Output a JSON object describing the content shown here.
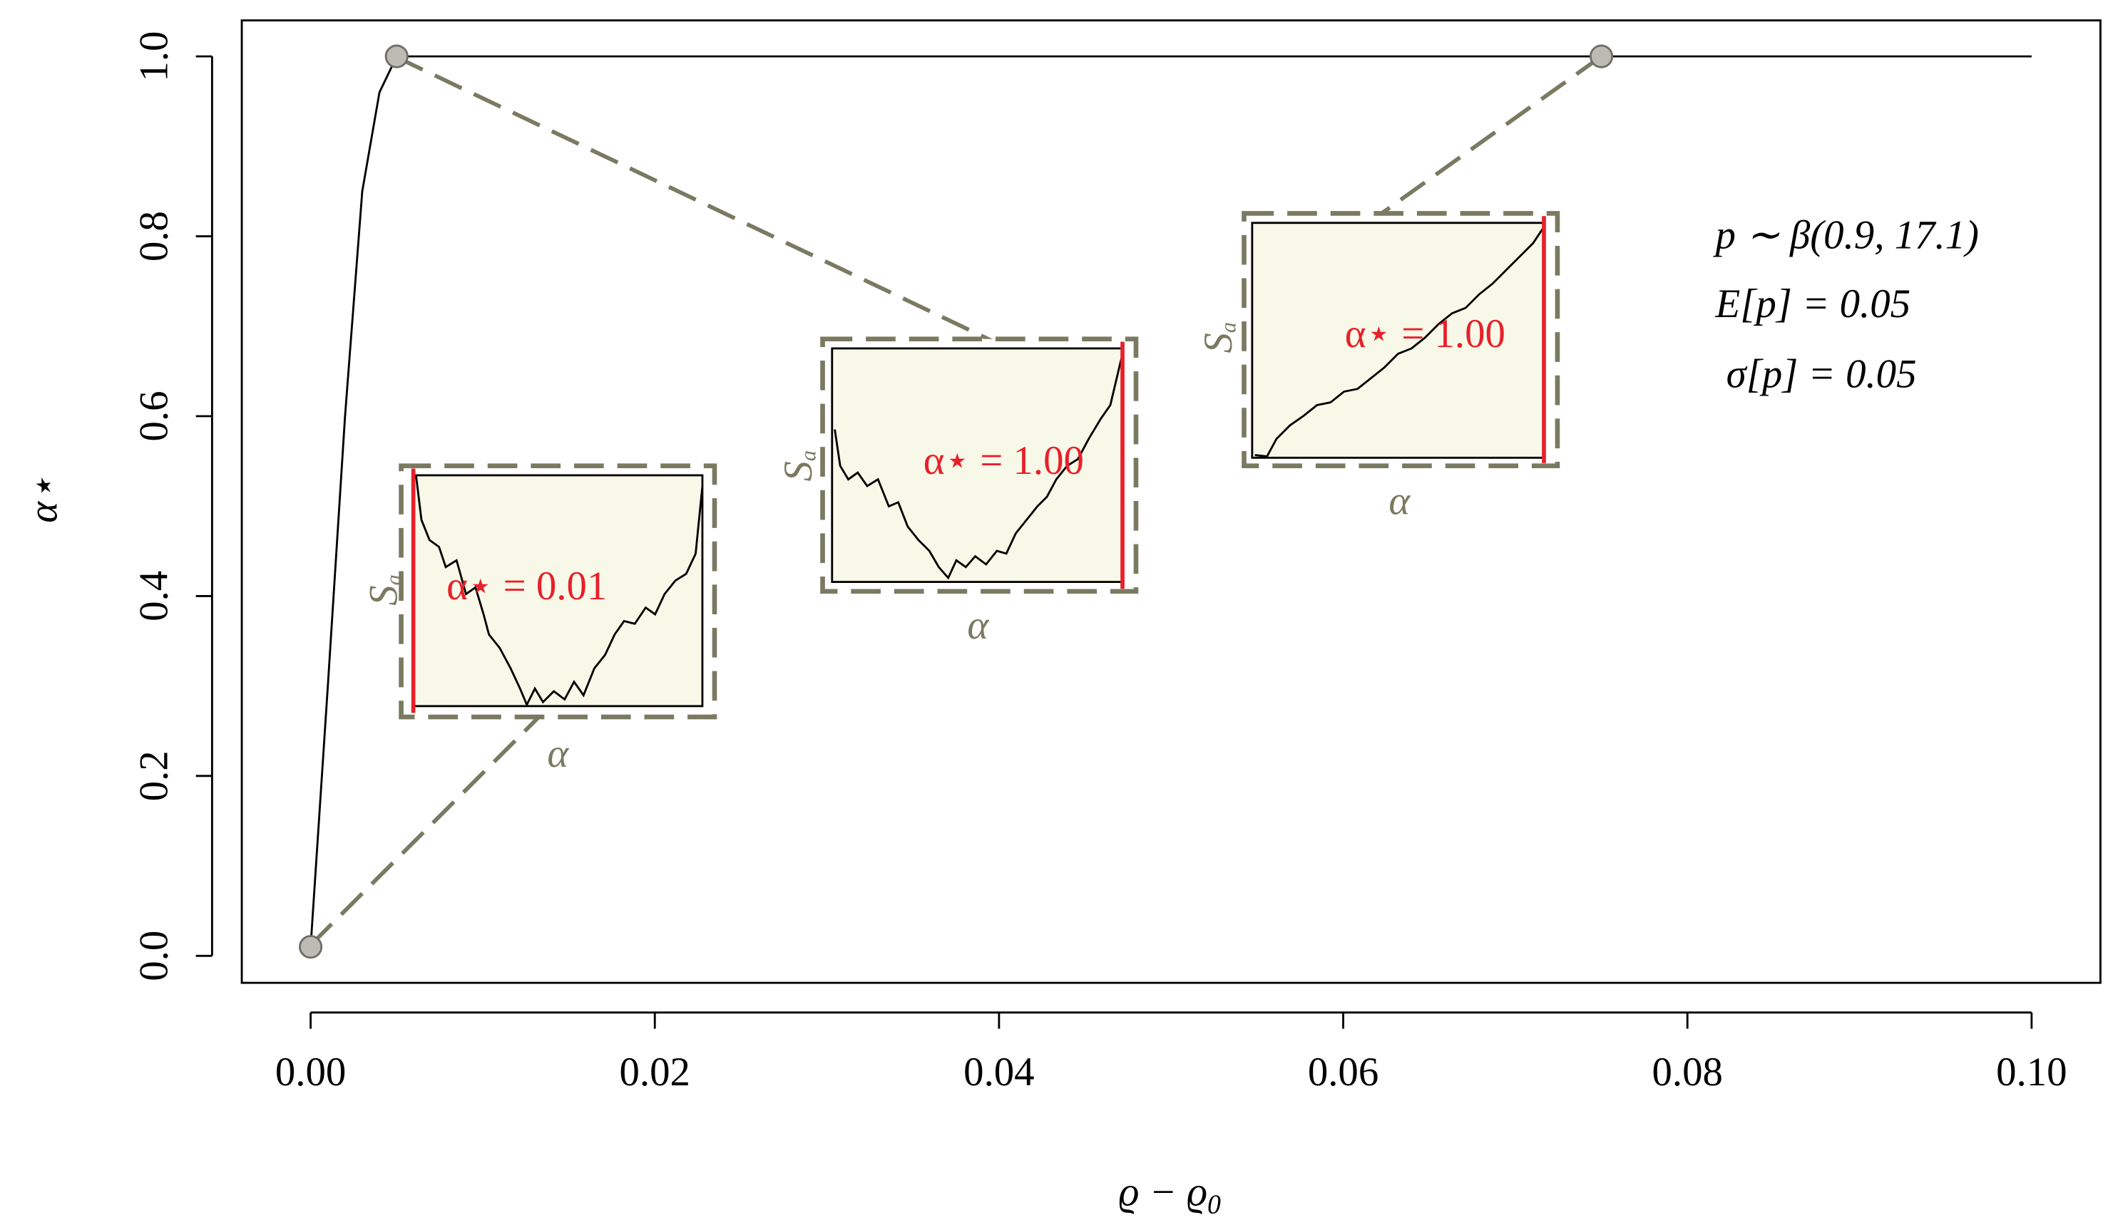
{
  "chart_data": {
    "type": "line",
    "xlabel": "ϱ − ϱ",
    "xlabel_sub": "0",
    "ylabel": "α⋆",
    "x": [
      0,
      0.001,
      0.002,
      0.003,
      0.004,
      0.005,
      0.1
    ],
    "series": [
      {
        "color": "#000000",
        "values": [
          0.01,
          0.3,
          0.6,
          0.85,
          0.96,
          1,
          1
        ]
      }
    ],
    "highlight_points": {
      "x": [
        0,
        0.005,
        0.075
      ],
      "y": [
        0.01,
        1,
        1
      ],
      "color": "#bcbcb4"
    },
    "xlim": [
      -0.004,
      0.104
    ],
    "ylim": [
      -0.03,
      1.04
    ],
    "xticks": [
      {
        "value": 0,
        "label": "0.00"
      },
      0.02,
      0.04,
      0.06,
      0.08,
      {
        "value": 0.1,
        "label": "0.10"
      }
    ],
    "yticks": [
      {
        "value": 0,
        "label": "0.0"
      },
      0.2,
      0.4,
      0.6,
      0.8,
      {
        "value": 1,
        "label": "1.0"
      }
    ],
    "annotations": [
      "p ∼ β(0.9, 17.1)",
      "E[p] = 0.05",
      "σ[p] = 0.05"
    ],
    "insets": [
      {
        "label": "α⋆ = 0.01",
        "ylabel": "S",
        "ylabel_sub": "a",
        "xlabel": "α"
      },
      {
        "label": "α⋆ = 1.00",
        "ylabel": "S",
        "ylabel_sub": "a",
        "xlabel": "α"
      },
      {
        "label": "α⋆ = 1.00",
        "ylabel": "S",
        "ylabel_sub": "a",
        "xlabel": "α"
      }
    ]
  }
}
